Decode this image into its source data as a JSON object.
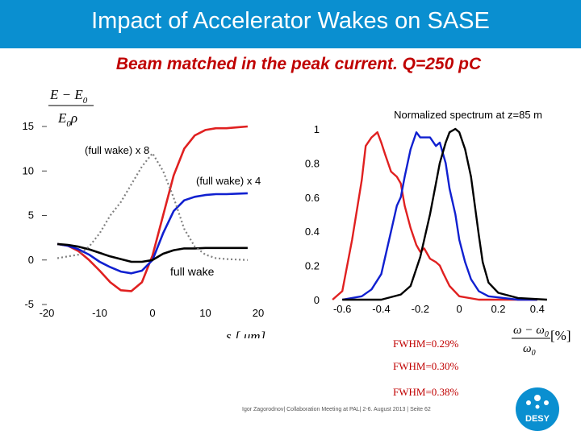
{
  "header": {
    "title": "Impact of Accelerator Wakes on SASE",
    "subtitle": "Beam matched in the peak current. Q=250 pC"
  },
  "colors": {
    "banner": "#0a8fd0",
    "subtitle": "#c00000",
    "red": "#e02020",
    "blue": "#1020d0",
    "black": "#000000",
    "gray": "#808080"
  },
  "chart_data": [
    {
      "type": "line",
      "ylabel_num": "E − E",
      "ylabel_num_sub": "0",
      "ylabel_den": "E",
      "ylabel_den_sub": "0",
      "ylabel_den_tail": "ρ",
      "xlabel": "s [ μm]",
      "xlim": [
        -20,
        20
      ],
      "ylim": [
        -5,
        15
      ],
      "xticks": [
        "-20",
        "-10",
        "0",
        "10",
        "20"
      ],
      "xtick_values": [
        -20,
        -10,
        0,
        10,
        20
      ],
      "yticks": [
        "-5",
        "0",
        "5",
        "10",
        "15"
      ],
      "ytick_values": [
        -5,
        0,
        5,
        10,
        15
      ],
      "annotations": [
        "(full wake) x  8",
        "(full wake) x  4",
        "full wake"
      ],
      "series": [
        {
          "color": "#e02020",
          "style": "solid",
          "points": [
            [
              -18,
              1.8
            ],
            [
              -16,
              1.6
            ],
            [
              -14,
              1.0
            ],
            [
              -12,
              0
            ],
            [
              -10,
              -1.2
            ],
            [
              -8,
              -2.5
            ],
            [
              -6,
              -3.4
            ],
            [
              -4,
              -3.5
            ],
            [
              -2,
              -2.5
            ],
            [
              0,
              0.5
            ],
            [
              2,
              5
            ],
            [
              4,
              9.5
            ],
            [
              6,
              12.5
            ],
            [
              8,
              14
            ],
            [
              10,
              14.6
            ],
            [
              12,
              14.8
            ],
            [
              14,
              14.8
            ],
            [
              16,
              14.9
            ],
            [
              18,
              15
            ]
          ]
        },
        {
          "color": "#1020d0",
          "style": "solid",
          "points": [
            [
              -18,
              1.8
            ],
            [
              -16,
              1.6
            ],
            [
              -14,
              1.2
            ],
            [
              -12,
              0.6
            ],
            [
              -10,
              -0.2
            ],
            [
              -8,
              -0.8
            ],
            [
              -6,
              -1.3
            ],
            [
              -4,
              -1.5
            ],
            [
              -2,
              -1.2
            ],
            [
              0,
              0
            ],
            [
              2,
              3
            ],
            [
              4,
              5.5
            ],
            [
              6,
              6.7
            ],
            [
              8,
              7.1
            ],
            [
              10,
              7.3
            ],
            [
              12,
              7.4
            ],
            [
              14,
              7.4
            ],
            [
              16,
              7.45
            ],
            [
              18,
              7.5
            ]
          ]
        },
        {
          "color": "#000000",
          "style": "solid",
          "points": [
            [
              -18,
              1.8
            ],
            [
              -16,
              1.7
            ],
            [
              -14,
              1.5
            ],
            [
              -12,
              1.2
            ],
            [
              -10,
              0.8
            ],
            [
              -8,
              0.4
            ],
            [
              -6,
              0.1
            ],
            [
              -4,
              -0.2
            ],
            [
              -2,
              -0.2
            ],
            [
              0,
              0
            ],
            [
              2,
              0.7
            ],
            [
              4,
              1.1
            ],
            [
              6,
              1.3
            ],
            [
              8,
              1.3
            ],
            [
              10,
              1.35
            ],
            [
              12,
              1.35
            ],
            [
              14,
              1.35
            ],
            [
              16,
              1.35
            ],
            [
              18,
              1.35
            ]
          ]
        },
        {
          "color": "#808080",
          "style": "dotted",
          "points": [
            [
              -18,
              0.2
            ],
            [
              -16,
              0.4
            ],
            [
              -14,
              0.6
            ],
            [
              -12,
              1.5
            ],
            [
              -10,
              3
            ],
            [
              -8,
              5
            ],
            [
              -6,
              6.5
            ],
            [
              -4,
              8.5
            ],
            [
              -2,
              10.5
            ],
            [
              0,
              12
            ],
            [
              2,
              10
            ],
            [
              4,
              7
            ],
            [
              6,
              3.5
            ],
            [
              8,
              1.5
            ],
            [
              10,
              0.6
            ],
            [
              12,
              0.2
            ],
            [
              14,
              0.1
            ],
            [
              16,
              0.05
            ],
            [
              18,
              0
            ]
          ]
        }
      ]
    },
    {
      "type": "line",
      "title": "Normalized spectrum at z=85 m",
      "xlabel_num": "ω − ω",
      "xlabel_num_sub": "0",
      "xlabel_den": "ω",
      "xlabel_den_sub": "0",
      "xlabel_unit": "[%]",
      "xlim": [
        -0.7,
        0.5
      ],
      "ylim": [
        0,
        1
      ],
      "xticks": [
        "-0.6",
        "-0.4",
        "-0.2",
        "0",
        "0.2",
        "0.4"
      ],
      "xtick_values": [
        -0.6,
        -0.4,
        -0.2,
        0,
        0.2,
        0.4
      ],
      "yticks": [
        "0",
        "0.2",
        "0.4",
        "0.6",
        "0.8",
        "1"
      ],
      "ytick_values": [
        0,
        0.2,
        0.4,
        0.6,
        0.8,
        1
      ],
      "series": [
        {
          "color": "#e02020",
          "points": [
            [
              -0.65,
              0
            ],
            [
              -0.6,
              0.05
            ],
            [
              -0.55,
              0.35
            ],
            [
              -0.5,
              0.7
            ],
            [
              -0.48,
              0.9
            ],
            [
              -0.45,
              0.95
            ],
            [
              -0.42,
              0.98
            ],
            [
              -0.4,
              0.92
            ],
            [
              -0.38,
              0.85
            ],
            [
              -0.35,
              0.75
            ],
            [
              -0.32,
              0.72
            ],
            [
              -0.3,
              0.68
            ],
            [
              -0.28,
              0.55
            ],
            [
              -0.25,
              0.42
            ],
            [
              -0.22,
              0.32
            ],
            [
              -0.2,
              0.28
            ],
            [
              -0.18,
              0.3
            ],
            [
              -0.15,
              0.24
            ],
            [
              -0.12,
              0.22
            ],
            [
              -0.1,
              0.2
            ],
            [
              -0.08,
              0.15
            ],
            [
              -0.05,
              0.08
            ],
            [
              0,
              0.02
            ],
            [
              0.1,
              0
            ],
            [
              0.4,
              0
            ]
          ]
        },
        {
          "color": "#1020d0",
          "points": [
            [
              -0.6,
              0
            ],
            [
              -0.5,
              0.02
            ],
            [
              -0.45,
              0.06
            ],
            [
              -0.4,
              0.15
            ],
            [
              -0.35,
              0.4
            ],
            [
              -0.32,
              0.55
            ],
            [
              -0.3,
              0.6
            ],
            [
              -0.28,
              0.72
            ],
            [
              -0.25,
              0.88
            ],
            [
              -0.22,
              0.98
            ],
            [
              -0.2,
              0.95
            ],
            [
              -0.15,
              0.95
            ],
            [
              -0.12,
              0.9
            ],
            [
              -0.1,
              0.92
            ],
            [
              -0.07,
              0.8
            ],
            [
              -0.05,
              0.65
            ],
            [
              -0.02,
              0.5
            ],
            [
              0,
              0.35
            ],
            [
              0.03,
              0.22
            ],
            [
              0.06,
              0.12
            ],
            [
              0.1,
              0.05
            ],
            [
              0.15,
              0.02
            ],
            [
              0.3,
              0
            ],
            [
              0.4,
              0
            ]
          ]
        },
        {
          "color": "#000000",
          "points": [
            [
              -0.6,
              0
            ],
            [
              -0.4,
              0
            ],
            [
              -0.3,
              0.03
            ],
            [
              -0.25,
              0.08
            ],
            [
              -0.2,
              0.25
            ],
            [
              -0.15,
              0.5
            ],
            [
              -0.12,
              0.68
            ],
            [
              -0.1,
              0.8
            ],
            [
              -0.07,
              0.92
            ],
            [
              -0.05,
              0.98
            ],
            [
              -0.02,
              1
            ],
            [
              0,
              0.98
            ],
            [
              0.03,
              0.88
            ],
            [
              0.06,
              0.72
            ],
            [
              0.08,
              0.55
            ],
            [
              0.1,
              0.38
            ],
            [
              0.12,
              0.22
            ],
            [
              0.15,
              0.1
            ],
            [
              0.2,
              0.04
            ],
            [
              0.3,
              0.01
            ],
            [
              0.45,
              0
            ]
          ]
        }
      ]
    }
  ],
  "fwhm_labels": [
    "FWHM=0.29%",
    "FWHM=0.30%",
    "FWHM=0.38%"
  ],
  "footer": "Igor Zagorodnov| Collaboration Meeting at PAL| 2-6. August 2013 | Seite 62",
  "logo": {
    "text": "DESY"
  }
}
